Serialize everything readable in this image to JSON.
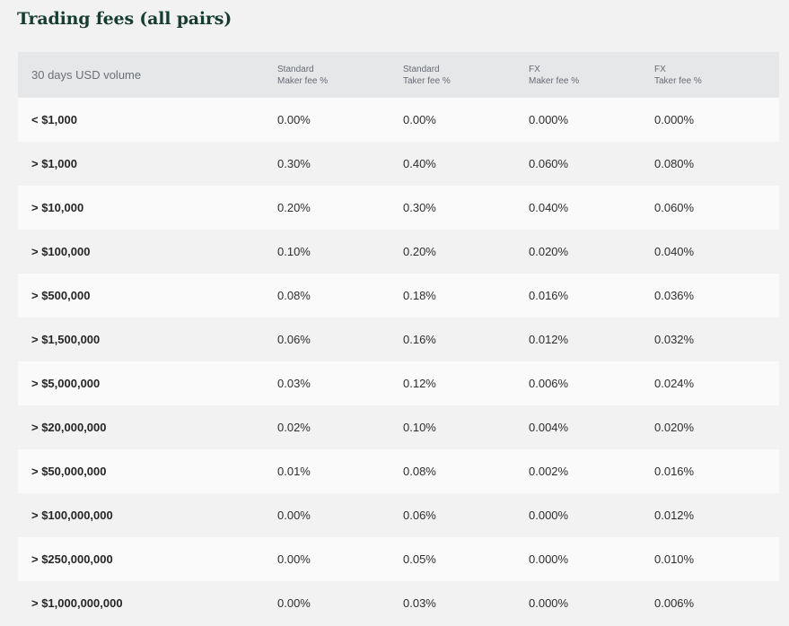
{
  "title": "Trading fees (all pairs)",
  "header": {
    "volume": "30 days USD volume",
    "std_maker_1": "Standard",
    "std_maker_2": "Maker fee %",
    "std_taker_1": "Standard",
    "std_taker_2": "Taker fee %",
    "fx_maker_1": "FX",
    "fx_maker_2": "Maker fee %",
    "fx_taker_1": "FX",
    "fx_taker_2": "Taker fee %"
  },
  "rows": [
    {
      "volume": "< $1,000",
      "std_maker": "0.00%",
      "std_taker": "0.00%",
      "fx_maker": "0.000%",
      "fx_taker": "0.000%"
    },
    {
      "volume": "> $1,000",
      "std_maker": "0.30%",
      "std_taker": "0.40%",
      "fx_maker": "0.060%",
      "fx_taker": "0.080%"
    },
    {
      "volume": "> $10,000",
      "std_maker": "0.20%",
      "std_taker": "0.30%",
      "fx_maker": "0.040%",
      "fx_taker": "0.060%"
    },
    {
      "volume": "> $100,000",
      "std_maker": "0.10%",
      "std_taker": "0.20%",
      "fx_maker": "0.020%",
      "fx_taker": "0.040%"
    },
    {
      "volume": "> $500,000",
      "std_maker": "0.08%",
      "std_taker": "0.18%",
      "fx_maker": "0.016%",
      "fx_taker": "0.036%"
    },
    {
      "volume": "> $1,500,000",
      "std_maker": "0.06%",
      "std_taker": "0.16%",
      "fx_maker": "0.012%",
      "fx_taker": "0.032%"
    },
    {
      "volume": "> $5,000,000",
      "std_maker": "0.03%",
      "std_taker": "0.12%",
      "fx_maker": "0.006%",
      "fx_taker": "0.024%"
    },
    {
      "volume": "> $20,000,000",
      "std_maker": "0.02%",
      "std_taker": "0.10%",
      "fx_maker": "0.004%",
      "fx_taker": "0.020%"
    },
    {
      "volume": "> $50,000,000",
      "std_maker": "0.01%",
      "std_taker": "0.08%",
      "fx_maker": "0.002%",
      "fx_taker": "0.016%"
    },
    {
      "volume": "> $100,000,000",
      "std_maker": "0.00%",
      "std_taker": "0.06%",
      "fx_maker": "0.000%",
      "fx_taker": "0.012%"
    },
    {
      "volume": "> $250,000,000",
      "std_maker": "0.00%",
      "std_taker": "0.05%",
      "fx_maker": "0.000%",
      "fx_taker": "0.010%"
    },
    {
      "volume": "> $1,000,000,000",
      "std_maker": "0.00%",
      "std_taker": "0.03%",
      "fx_maker": "0.000%",
      "fx_taker": "0.006%"
    }
  ],
  "colors": {
    "title": "#173d33",
    "header_bg": "#e6e7e9",
    "row_light": "#fafafa",
    "row_dark": "#f2f2f2"
  }
}
